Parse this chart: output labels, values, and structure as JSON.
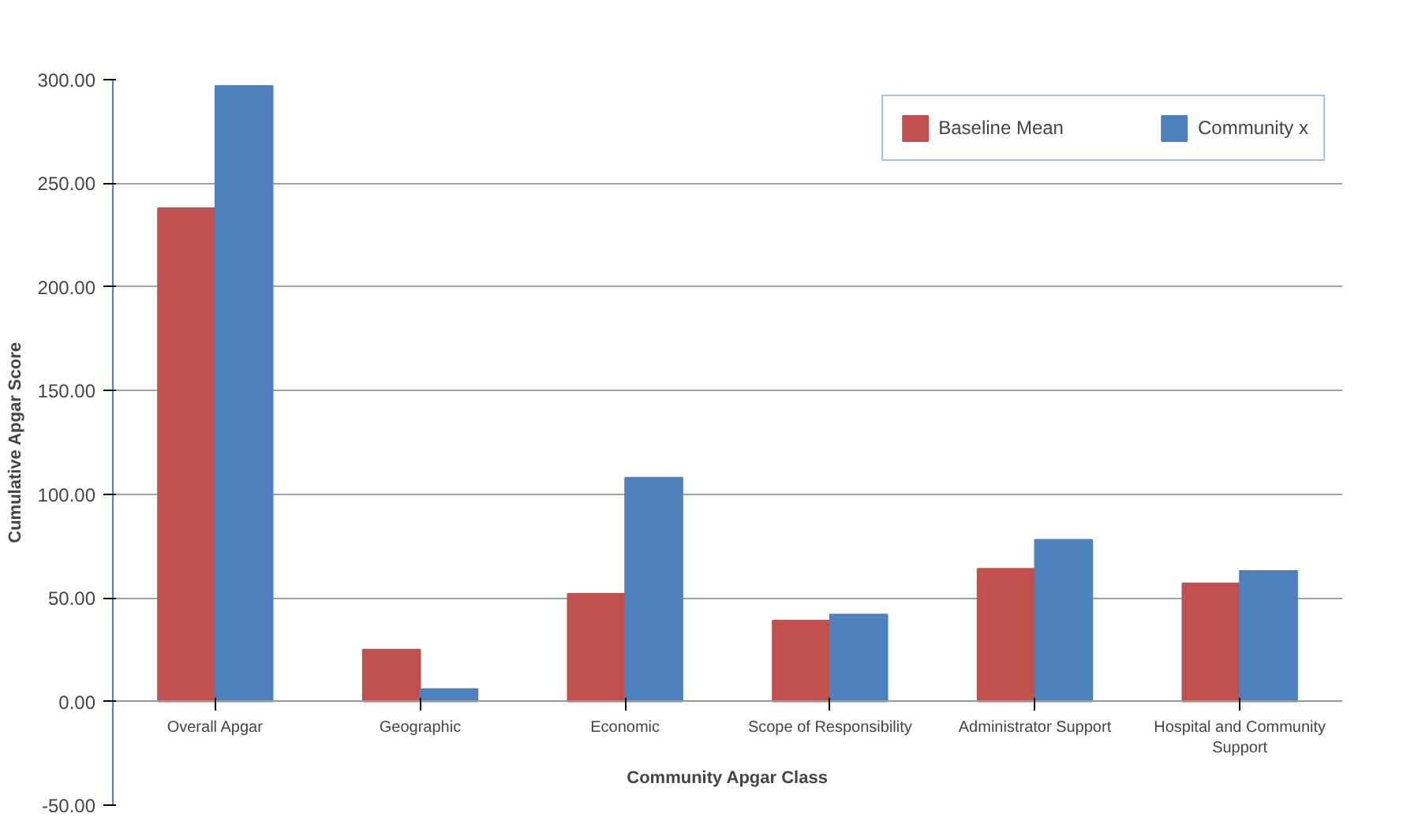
{
  "chart_data": {
    "type": "bar",
    "xlabel": "Community Apgar Class",
    "ylabel": "Cumulative Apgar Score",
    "categories": [
      "Overall Apgar",
      "Geographic",
      "Economic",
      "Scope of Responsibility",
      "Administrator Support",
      "Hospital and Community Support"
    ],
    "series": [
      {
        "name": "Baseline Mean",
        "color": "#c0504d",
        "values": [
          238,
          25,
          52,
          39,
          64,
          57
        ]
      },
      {
        "name": "Community x",
        "color": "#4f81bd",
        "values": [
          297,
          6,
          108,
          42,
          78,
          63
        ]
      }
    ],
    "ylim": [
      -50,
      300
    ],
    "yticks": [
      {
        "value": -50,
        "label": "-50.00"
      },
      {
        "value": 0,
        "label": "0.00"
      },
      {
        "value": 50,
        "label": "50.00"
      },
      {
        "value": 100,
        "label": "100.00"
      },
      {
        "value": 150,
        "label": "150.00"
      },
      {
        "value": 200,
        "label": "200.00"
      },
      {
        "value": 250,
        "label": "250.00"
      },
      {
        "value": 300,
        "label": "300.00"
      }
    ],
    "grid": "y",
    "legend": "top"
  }
}
